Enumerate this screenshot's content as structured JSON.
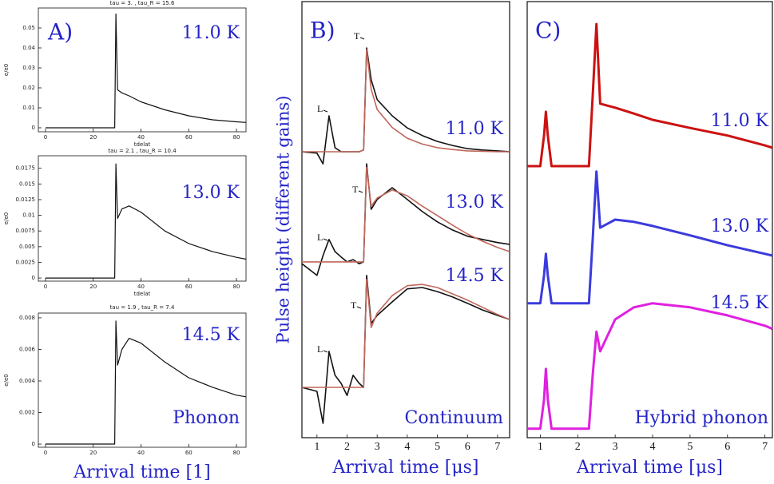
{
  "chart_data": [
    {
      "type": "line",
      "title": "tau = 3. , tau_R = 15.6",
      "xlabel": "tdelat",
      "ylabel": "e/e0",
      "annotations": [
        "A)",
        "11.0 K"
      ],
      "x": [
        0,
        29,
        29.5,
        30.2,
        32,
        35,
        40,
        50,
        60,
        70,
        80,
        84
      ],
      "series": [
        {
          "color": "#111111",
          "values": [
            0,
            0,
            0.057,
            0.019,
            0.0175,
            0.016,
            0.013,
            0.009,
            0.006,
            0.004,
            0.003,
            0.0027
          ]
        }
      ],
      "xlim": [
        -3,
        84
      ],
      "xticks": [
        0,
        20,
        40,
        60,
        80
      ],
      "ylim": [
        -0.002,
        0.06
      ],
      "yticks": [
        0,
        0.01,
        0.02,
        0.03,
        0.04,
        0.05
      ]
    },
    {
      "type": "line",
      "title": "tau = 2.1 , tau_R = 10.4",
      "xlabel": "tdelat",
      "ylabel": "e/e0",
      "annotations": [
        "13.0 K"
      ],
      "x": [
        0,
        29,
        29.5,
        30.2,
        32,
        35,
        40,
        50,
        60,
        70,
        80,
        84
      ],
      "series": [
        {
          "color": "#111111",
          "values": [
            0,
            0,
            0.0182,
            0.0095,
            0.011,
            0.0115,
            0.0105,
            0.0075,
            0.0055,
            0.0042,
            0.0033,
            0.003
          ]
        }
      ],
      "xlim": [
        -3,
        84
      ],
      "xticks": [
        0,
        20,
        40,
        60,
        80
      ],
      "ylim": [
        -0.0005,
        0.0195
      ],
      "yticks": [
        0,
        0.0025,
        0.005,
        0.0075,
        0.01,
        0.0125,
        0.015,
        0.0175
      ]
    },
    {
      "type": "line",
      "title": "tau = 1.9 , tau_R = 7.4",
      "xlabel": "Arrival time [1]",
      "ylabel": "e/e0",
      "annotations": [
        "14.5 K",
        "Phonon"
      ],
      "x": [
        0,
        29,
        29.5,
        30.2,
        32,
        35,
        40,
        50,
        60,
        70,
        80,
        84
      ],
      "series": [
        {
          "color": "#111111",
          "values": [
            0,
            0,
            0.0078,
            0.005,
            0.006,
            0.0067,
            0.0064,
            0.0052,
            0.0042,
            0.0036,
            0.0031,
            0.003
          ]
        }
      ],
      "xlim": [
        -3,
        84
      ],
      "xticks": [
        0,
        20,
        40,
        60,
        80
      ],
      "ylim": [
        -0.0002,
        0.0083
      ],
      "yticks": [
        0,
        0.002,
        0.004,
        0.006,
        0.008
      ]
    },
    {
      "type": "line",
      "xlabel": "Arrival time [μs]",
      "ylabel": "Pulse height (different gains)",
      "annotations": [
        "B)",
        "11.0 K",
        "13.0 K",
        "14.5 K",
        "Continuum",
        "L",
        "L",
        "L",
        "T",
        "T",
        "T"
      ],
      "x": [
        0.5,
        1.0,
        1.2,
        1.4,
        1.6,
        1.8,
        2.0,
        2.2,
        2.4,
        2.55,
        2.65,
        2.8,
        3.0,
        3.5,
        4.0,
        4.5,
        5.0,
        5.5,
        6.0,
        6.5,
        7.0,
        7.4
      ],
      "series": [
        {
          "color": "#111111",
          "values": [
            66.6,
            66.3,
            63.9,
            74.6,
            67.5,
            66.6,
            66.6,
            66.6,
            66.6,
            67.0,
            89.7,
            82.6,
            78.2,
            74.6,
            71.9,
            70.2,
            68.9,
            68.0,
            67.3,
            67.0,
            66.8,
            66.6
          ]
        },
        {
          "color": "#c0665a",
          "values": [
            66.6,
            66.6,
            66.6,
            66.6,
            66.6,
            66.6,
            66.6,
            66.6,
            66.6,
            67.0,
            89.3,
            80.5,
            76.0,
            72.0,
            69.6,
            68.3,
            67.5,
            67.1,
            66.8,
            66.7,
            66.6,
            66.6
          ]
        },
        {
          "color": "#111111",
          "values": [
            41.7,
            39.1,
            43.5,
            47.1,
            44.4,
            43.2,
            42.1,
            42.6,
            41.7,
            42.1,
            63.9,
            53.8,
            56.0,
            58.6,
            56.0,
            53.3,
            51.0,
            49.2,
            47.8,
            47.1,
            46.4,
            46.0
          ]
        },
        {
          "color": "#c0665a",
          "values": [
            42.1,
            42.1,
            42.1,
            42.1,
            42.1,
            42.1,
            42.1,
            42.1,
            42.1,
            42.1,
            63.1,
            54.5,
            56.3,
            58.1,
            56.8,
            54.5,
            52.4,
            50.3,
            48.3,
            46.7,
            45.3,
            44.4
          ]
        },
        {
          "color": "#111111",
          "values": [
            14.2,
            13.3,
            6.2,
            22.2,
            16.9,
            15.1,
            12.4,
            16.9,
            15.1,
            14.2,
            39.1,
            28.4,
            30.2,
            33.2,
            36.1,
            36.4,
            35.5,
            34.3,
            32.9,
            31.4,
            30.2,
            29.3
          ]
        },
        {
          "color": "#c0665a",
          "values": [
            14.2,
            14.2,
            14.2,
            14.2,
            14.2,
            14.2,
            14.2,
            14.2,
            14.2,
            14.2,
            38.2,
            27.5,
            30.7,
            34.6,
            36.8,
            37.1,
            36.4,
            35.0,
            33.6,
            32.0,
            30.4,
            29.3
          ]
        }
      ],
      "xlim": [
        0.5,
        7.4
      ],
      "xticks": [
        1,
        2,
        3,
        4,
        5,
        6,
        7
      ],
      "ylim": [
        3,
        100
      ]
    },
    {
      "type": "line",
      "xlabel": "Arrival time [μs]",
      "annotations": [
        "C)",
        "11.0 K",
        "13.0 K",
        "14.5 K",
        "Hybrid phonon"
      ],
      "x": [
        0.65,
        1.0,
        1.1,
        1.15,
        1.2,
        1.3,
        2.3,
        2.4,
        2.5,
        2.6,
        3.0,
        3.5,
        4.0,
        5.0,
        6.0,
        7.0,
        7.2
      ],
      "series": [
        {
          "color": "#cc1111",
          "values": [
            63.4,
            63.4,
            70.2,
            75.5,
            70.2,
            63.4,
            63.4,
            79.0,
            95.0,
            77.3,
            76.4,
            75.1,
            73.7,
            71.9,
            70.2,
            68.0,
            67.5
          ]
        },
        {
          "color": "#3b3bdd",
          "values": [
            32.9,
            32.9,
            39.1,
            43.9,
            39.1,
            32.9,
            32.9,
            47.1,
            62.2,
            49.7,
            51.5,
            51.0,
            50.1,
            48.0,
            45.8,
            43.9,
            43.5
          ]
        },
        {
          "color": "#e020e0",
          "values": [
            5.0,
            5.0,
            11.5,
            18.3,
            11.5,
            5.0,
            5.0,
            16.9,
            26.6,
            22.2,
            29.3,
            32.0,
            32.9,
            32.0,
            30.2,
            27.9,
            27.2
          ]
        }
      ],
      "xlim": [
        0.65,
        7.2
      ],
      "xticks": [
        1,
        2,
        3,
        4,
        5,
        6,
        7
      ],
      "ylim": [
        3,
        100
      ]
    }
  ]
}
